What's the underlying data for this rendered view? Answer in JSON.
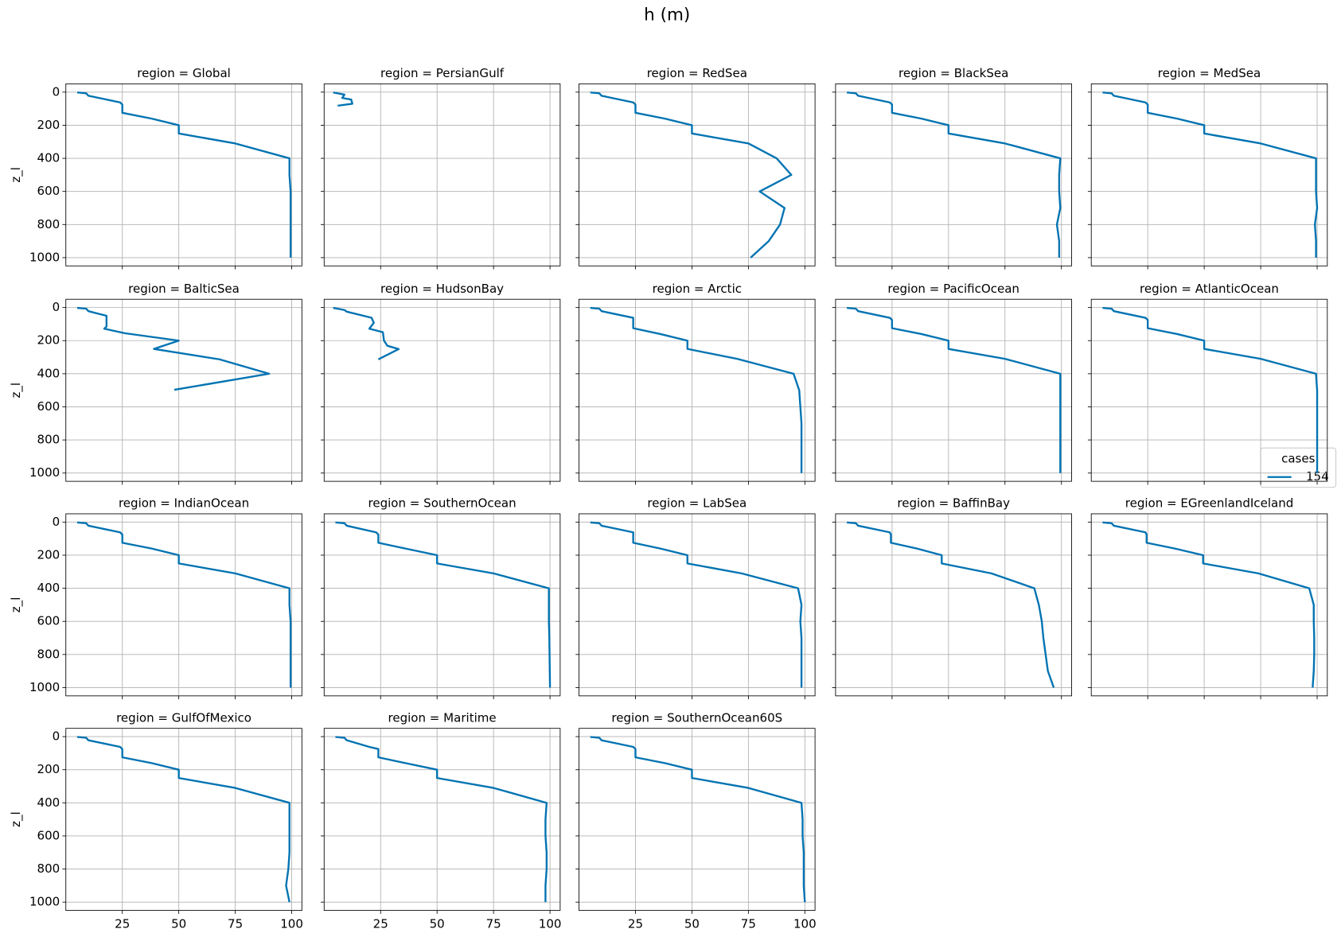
{
  "title": "h (m)",
  "legend": {
    "title": "cases",
    "entries": [
      {
        "name": "154",
        "color": "#0173b2"
      }
    ]
  },
  "axes": {
    "xlim": [
      0,
      104.5
    ],
    "xticks": [
      25,
      50,
      75,
      100
    ],
    "ylim": [
      1050,
      -50
    ],
    "yticks": [
      0,
      200,
      400,
      600,
      800,
      1000
    ],
    "grid": true
  },
  "chart_data": [
    {
      "type": "line",
      "title": "region = Global",
      "ylabel": "z_l",
      "ytick_labels": true,
      "xtick_labels": false,
      "series": [
        {
          "x": [
            5,
            9,
            10,
            24,
            25,
            25,
            38,
            50,
            50,
            75,
            99,
            99,
            99.5,
            99.5,
            99.5,
            99.5,
            99.5
          ],
          "values": [
            2,
            7,
            22,
            62,
            75,
            125,
            160,
            200,
            250,
            310,
            400,
            500,
            600,
            700,
            800,
            900,
            1000
          ]
        }
      ]
    },
    {
      "type": "line",
      "title": "region = PersianGulf",
      "ytick_labels": false,
      "xtick_labels": false,
      "series": [
        {
          "x": [
            4,
            9,
            8,
            12,
            12.5,
            6
          ],
          "values": [
            2,
            15,
            35,
            45,
            70,
            82
          ]
        }
      ]
    },
    {
      "type": "line",
      "title": "region = RedSea",
      "ytick_labels": false,
      "xtick_labels": false,
      "series": [
        {
          "x": [
            5,
            9,
            10,
            24,
            25,
            25,
            38,
            50,
            50,
            75,
            87.5,
            94,
            80,
            91,
            89,
            84,
            76
          ],
          "values": [
            2,
            7,
            22,
            62,
            75,
            125,
            160,
            200,
            250,
            310,
            400,
            500,
            600,
            700,
            800,
            900,
            1000
          ]
        }
      ]
    },
    {
      "type": "line",
      "title": "region = BlackSea",
      "ytick_labels": false,
      "xtick_labels": false,
      "series": [
        {
          "x": [
            5,
            9,
            10,
            24,
            25,
            25,
            38,
            50,
            50,
            75,
            99.5,
            99,
            99,
            99.5,
            98,
            99,
            99
          ],
          "values": [
            2,
            7,
            22,
            62,
            75,
            125,
            160,
            200,
            250,
            310,
            400,
            500,
            600,
            700,
            800,
            900,
            1000
          ]
        }
      ]
    },
    {
      "type": "line",
      "title": "region = MedSea",
      "ytick_labels": false,
      "xtick_labels": false,
      "series": [
        {
          "x": [
            5,
            9,
            10,
            24,
            25,
            25,
            38,
            50,
            50,
            75,
            99.5,
            99.5,
            99.5,
            100,
            99,
            99.5,
            99.5
          ],
          "values": [
            2,
            7,
            22,
            62,
            75,
            125,
            160,
            200,
            250,
            310,
            400,
            500,
            600,
            700,
            800,
            900,
            1000
          ]
        }
      ]
    },
    {
      "type": "line",
      "title": "region = BalticSea",
      "ylabel": "z_l",
      "ytick_labels": true,
      "xtick_labels": false,
      "series": [
        {
          "x": [
            5,
            9,
            10,
            18,
            18,
            17,
            26,
            50,
            39,
            68,
            90,
            48
          ],
          "values": [
            2,
            7,
            22,
            50,
            115,
            128,
            155,
            200,
            250,
            313,
            400,
            497
          ]
        }
      ]
    },
    {
      "type": "line",
      "title": "region = HudsonBay",
      "ytick_labels": false,
      "xtick_labels": false,
      "series": [
        {
          "x": [
            4,
            9,
            10,
            21,
            22,
            20,
            26,
            26.5,
            28,
            33,
            24
          ],
          "values": [
            2,
            15,
            25,
            62,
            92,
            128,
            149,
            200,
            231,
            251,
            313
          ]
        }
      ]
    },
    {
      "type": "line",
      "title": "region = Arctic",
      "ytick_labels": false,
      "xtick_labels": false,
      "series": [
        {
          "x": [
            5,
            9,
            10,
            24,
            24,
            24,
            36,
            48,
            48,
            70,
            95,
            97.5,
            98,
            98.5,
            98.5,
            98.5,
            98.5
          ],
          "values": [
            2,
            7,
            22,
            62,
            75,
            125,
            160,
            200,
            250,
            310,
            400,
            500,
            600,
            700,
            800,
            900,
            1000
          ]
        }
      ]
    },
    {
      "type": "line",
      "title": "region = PacificOcean",
      "ytick_labels": false,
      "xtick_labels": false,
      "series": [
        {
          "x": [
            5,
            9,
            10,
            24,
            25,
            25,
            38,
            50,
            50,
            75,
            99.5,
            99.5,
            99.5,
            99.5,
            99.5,
            99.5,
            99.5
          ],
          "values": [
            2,
            7,
            22,
            62,
            75,
            125,
            160,
            200,
            250,
            310,
            400,
            500,
            600,
            700,
            800,
            900,
            1000
          ]
        }
      ]
    },
    {
      "type": "line",
      "title": "region = AtlanticOcean",
      "ytick_labels": false,
      "xtick_labels": false,
      "series": [
        {
          "x": [
            5,
            9,
            10,
            24,
            25,
            25,
            38,
            50,
            50,
            75,
            99.5,
            100,
            100,
            100,
            100,
            100,
            100
          ],
          "values": [
            2,
            7,
            22,
            62,
            75,
            125,
            160,
            200,
            250,
            310,
            400,
            500,
            600,
            700,
            800,
            900,
            1000
          ]
        }
      ]
    },
    {
      "type": "line",
      "title": "region = IndianOcean",
      "ylabel": "z_l",
      "ytick_labels": true,
      "xtick_labels": false,
      "series": [
        {
          "x": [
            5,
            9,
            10,
            24,
            25,
            25,
            38,
            50,
            50,
            75,
            99,
            99,
            99.5,
            99.5,
            99.5,
            99.5,
            99.5
          ],
          "values": [
            2,
            7,
            22,
            62,
            75,
            125,
            160,
            200,
            250,
            310,
            400,
            500,
            600,
            700,
            800,
            900,
            1000
          ]
        }
      ]
    },
    {
      "type": "line",
      "title": "region = SouthernOcean",
      "ytick_labels": false,
      "xtick_labels": false,
      "series": [
        {
          "x": [
            5,
            9,
            10,
            23,
            24,
            24,
            36,
            50,
            50,
            75,
            99.5,
            99.5,
            99.5,
            99.7,
            99.8,
            99.9,
            100
          ],
          "values": [
            2,
            7,
            22,
            62,
            75,
            125,
            160,
            200,
            250,
            310,
            400,
            500,
            600,
            700,
            800,
            900,
            1000
          ]
        }
      ]
    },
    {
      "type": "line",
      "title": "region = LabSea",
      "ytick_labels": false,
      "xtick_labels": false,
      "series": [
        {
          "x": [
            5,
            9,
            10,
            24,
            24,
            24,
            36,
            48,
            48,
            72,
            97,
            98.5,
            98,
            98.5,
            98.5,
            98.5,
            98.5
          ],
          "values": [
            2,
            7,
            22,
            62,
            75,
            125,
            160,
            200,
            250,
            310,
            400,
            500,
            600,
            700,
            800,
            900,
            1000
          ]
        }
      ]
    },
    {
      "type": "line",
      "title": "region = BaffinBay",
      "ytick_labels": false,
      "xtick_labels": false,
      "series": [
        {
          "x": [
            5,
            9,
            10,
            24,
            24.5,
            24.5,
            36,
            47,
            47,
            69,
            88,
            90,
            91.3,
            92,
            93,
            94,
            96.6
          ],
          "values": [
            2,
            7,
            22,
            62,
            75,
            125,
            160,
            200,
            250,
            310,
            400,
            500,
            600,
            700,
            800,
            900,
            1000
          ]
        }
      ]
    },
    {
      "type": "line",
      "title": "region = EGreenlandIceland",
      "ytick_labels": false,
      "xtick_labels": false,
      "series": [
        {
          "x": [
            5,
            9,
            10,
            24,
            24.5,
            24.5,
            37,
            49.5,
            49.5,
            74,
            96.5,
            98.5,
            98.5,
            98.7,
            98.7,
            98.5,
            98
          ],
          "values": [
            2,
            7,
            22,
            62,
            75,
            125,
            160,
            200,
            250,
            310,
            400,
            500,
            600,
            700,
            800,
            900,
            1000
          ]
        }
      ]
    },
    {
      "type": "line",
      "title": "region = GulfOfMexico",
      "ylabel": "z_l",
      "ytick_labels": true,
      "xtick_labels": true,
      "series": [
        {
          "x": [
            5,
            9,
            10,
            24,
            25,
            25,
            38,
            50,
            50,
            75,
            99,
            99,
            99,
            99,
            98.5,
            97.5,
            99
          ],
          "values": [
            2,
            7,
            22,
            62,
            75,
            125,
            160,
            200,
            250,
            310,
            400,
            500,
            600,
            700,
            800,
            900,
            1000
          ]
        }
      ]
    },
    {
      "type": "line",
      "title": "region = Maritime",
      "ytick_labels": false,
      "xtick_labels": true,
      "series": [
        {
          "x": [
            5,
            9,
            10,
            20,
            24,
            24,
            36,
            50,
            50,
            75,
            98.5,
            98,
            98,
            98.5,
            98.5,
            98,
            98
          ],
          "values": [
            2,
            7,
            22,
            62,
            75,
            125,
            160,
            200,
            250,
            310,
            400,
            500,
            600,
            700,
            800,
            900,
            1000
          ]
        }
      ]
    },
    {
      "type": "line",
      "title": "region = SouthernOcean60S",
      "ytick_labels": false,
      "xtick_labels": true,
      "series": [
        {
          "x": [
            5,
            9,
            10,
            24,
            25,
            25,
            38,
            50,
            50,
            75,
            98.5,
            99,
            99,
            99.5,
            99.5,
            99.5,
            100
          ],
          "values": [
            2,
            7,
            22,
            62,
            75,
            125,
            160,
            200,
            250,
            310,
            400,
            500,
            600,
            700,
            800,
            900,
            1000
          ]
        }
      ]
    }
  ]
}
